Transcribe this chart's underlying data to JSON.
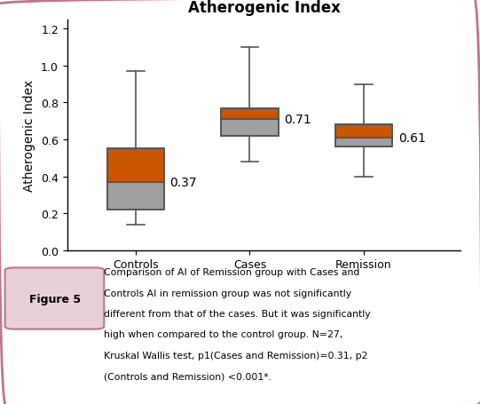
{
  "title": "Atherogenic Index",
  "ylabel": "Atherogenic Index",
  "categories": [
    "Controls",
    "Cases",
    "Remission"
  ],
  "box_data": [
    {
      "q1": 0.22,
      "median": 0.37,
      "q3": 0.55,
      "whislo": 0.14,
      "whishi": 0.97
    },
    {
      "q1": 0.62,
      "median": 0.71,
      "q3": 0.77,
      "whislo": 0.48,
      "whishi": 1.1
    },
    {
      "q1": 0.56,
      "median": 0.61,
      "q3": 0.68,
      "whislo": 0.4,
      "whishi": 0.9
    }
  ],
  "median_labels": [
    "0.37",
    "0.71",
    "0.61"
  ],
  "box_face_color_lower": "#a0a0a0",
  "box_face_color_upper": "#cc5500",
  "box_edge_color": "#555555",
  "whisker_color": "#555555",
  "median_line_color": "#555555",
  "ylim": [
    0,
    1.25
  ],
  "yticks": [
    0,
    0.2,
    0.4,
    0.6,
    0.8,
    1.0,
    1.2
  ],
  "title_fontsize": 12,
  "label_fontsize": 10,
  "tick_fontsize": 9,
  "annotation_fontsize": 10,
  "figure_bg": "#ffffff",
  "outer_border_color": "#c0748a",
  "caption_label": "Figure 5",
  "caption_bg": "#e8d0d8",
  "caption_text_lines": [
    "Comparison of AI of Remission group with Cases and",
    "Controls AI in remission group was not significantly",
    "different from that of the cases. But it was significantly",
    "high when compared to the control group. N=27,",
    "Kruskal Wallis test, p1(Cases and Remission)=0.31, p2",
    "(Controls and Remission) <0.001*."
  ]
}
